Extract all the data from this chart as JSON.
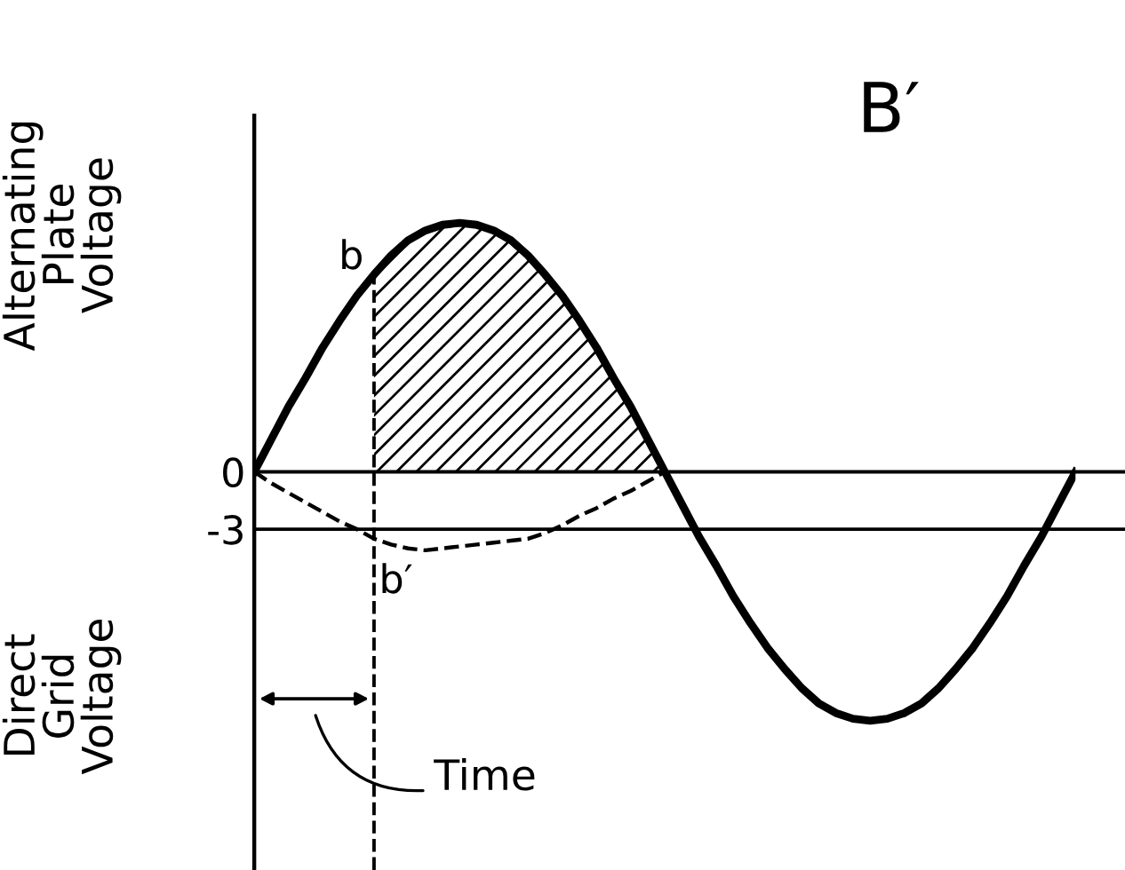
{
  "chart_data": {
    "type": "line",
    "title": "B′",
    "ylabel": "Alternating\nPlate\nVoltage",
    "categories": [
      null,
      null,
      null,
      null,
      null,
      null,
      null,
      null,
      null,
      null,
      null,
      null,
      null,
      null,
      null,
      null,
      null,
      null,
      null,
      null,
      null,
      null,
      null,
      null,
      null,
      null,
      null,
      null,
      null,
      null,
      null,
      null,
      null,
      null,
      null,
      null,
      null,
      null,
      null,
      null,
      null,
      null,
      null,
      null,
      null,
      null,
      null,
      null,
      null
    ],
    "ylim": [
      -20.8,
      18.6
    ],
    "yticks": [
      0,
      -3
    ],
    "tick_labels": "y",
    "series": [
      {
        "color": "#000000",
        "line_style": "solid",
        "values": [
          0,
          1.7,
          3.4,
          4.9,
          6.5,
          7.9,
          9.2,
          10.3,
          11.3,
          12.1,
          12.6,
          12.9,
          13,
          12.9,
          12.6,
          12.1,
          11.3,
          10.3,
          9.2,
          7.9,
          6.5,
          4.9,
          3.4,
          1.7,
          0,
          -1.7,
          -3.4,
          -4.9,
          -6.5,
          -7.9,
          -9.2,
          -10.3,
          -11.3,
          -12.1,
          -12.6,
          -12.9,
          -13,
          -12.9,
          -12.6,
          -12.1,
          -11.3,
          -10.3,
          -9.2,
          -7.9,
          -6.5,
          -4.9,
          -3.4,
          -1.7,
          0
        ]
      },
      {
        "color": "#000000",
        "line_style": "dashed",
        "values": [
          0,
          -0.6,
          -1.1,
          -1.6,
          -2.1,
          -2.6,
          -3.0,
          -3.5,
          -3.8,
          -4.0,
          -4.1,
          -4.0,
          -3.9,
          -3.8,
          -3.7,
          -3.6,
          -3.5,
          -3.2,
          -2.8,
          -2.3,
          -1.9,
          -1.4,
          -1.0,
          -0.5,
          0,
          null,
          null,
          null,
          null,
          null,
          null,
          null,
          null,
          null,
          null,
          null,
          null,
          null,
          null,
          null,
          null,
          null,
          null,
          null,
          null,
          null,
          null,
          null,
          null
        ]
      },
      {
        "type": "area",
        "color": "#000000",
        "values": [
          null,
          null,
          null,
          null,
          null,
          null,
          null,
          10.3,
          11.3,
          12.1,
          12.6,
          12.9,
          13,
          12.9,
          12.6,
          12.1,
          11.3,
          10.3,
          9.2,
          7.9,
          6.5,
          4.9,
          3.4,
          1.7,
          0,
          null,
          null,
          null,
          null,
          null,
          null,
          null,
          null,
          null,
          null,
          null,
          null,
          null,
          null,
          null,
          null,
          null,
          null,
          null,
          null,
          null,
          null,
          null,
          null
        ]
      }
    ],
    "ref_lines": [
      {
        "axis": "y",
        "value": 0,
        "color": "#000000",
        "line_style": "solid"
      },
      {
        "axis": "y",
        "value": -3,
        "color": "#000000",
        "line_style": "solid"
      }
    ],
    "annotations": [
      "b",
      {
        "text": "b′",
        "y": -3.5
      },
      "Time",
      "Direct\nGrid\nVoltage"
    ]
  }
}
